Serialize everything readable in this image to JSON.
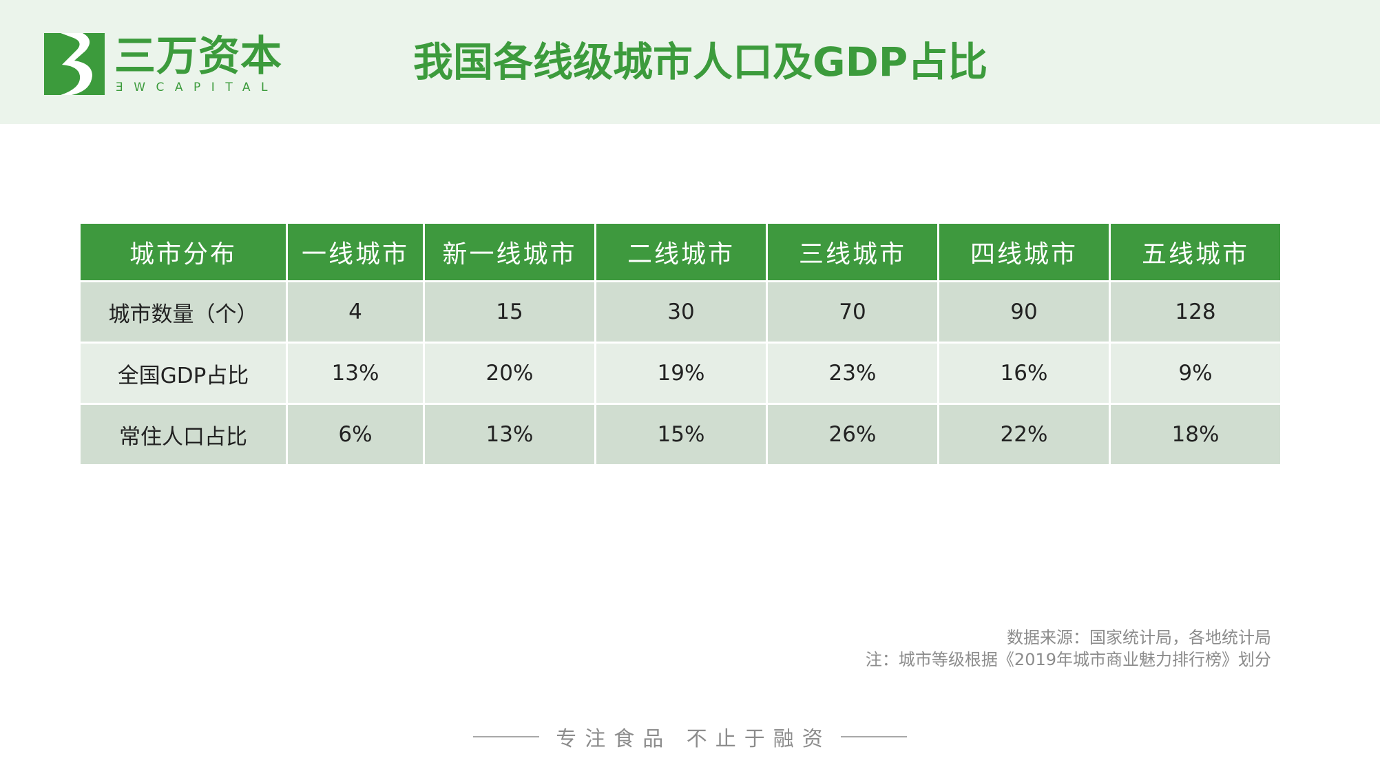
{
  "brand": {
    "name": "三万资本",
    "sub": "ƎWCAPITAL",
    "accent_color": "#3c9b3c",
    "logo_icon": "3w-capital-logo-icon"
  },
  "title": "我国各线级城市人口及GDP占比",
  "table": {
    "headers": [
      "城市分布",
      "一线城市",
      "新一线城市",
      "二线城市",
      "三线城市",
      "四线城市",
      "五线城市"
    ],
    "rows": [
      [
        "城市数量（个）",
        "4",
        "15",
        "30",
        "70",
        "90",
        "128"
      ],
      [
        "全国GDP占比",
        "13%",
        "20%",
        "19%",
        "23%",
        "16%",
        "9%"
      ],
      [
        "常住人口占比",
        "6%",
        "13%",
        "15%",
        "26%",
        "22%",
        "18%"
      ]
    ]
  },
  "notes": {
    "source": "数据来源：国家统计局，各地统计局",
    "remark": "注：城市等级根据《2019年城市商业魅力排行榜》划分"
  },
  "footer": {
    "slogan": "专注食品  不止于融资"
  }
}
